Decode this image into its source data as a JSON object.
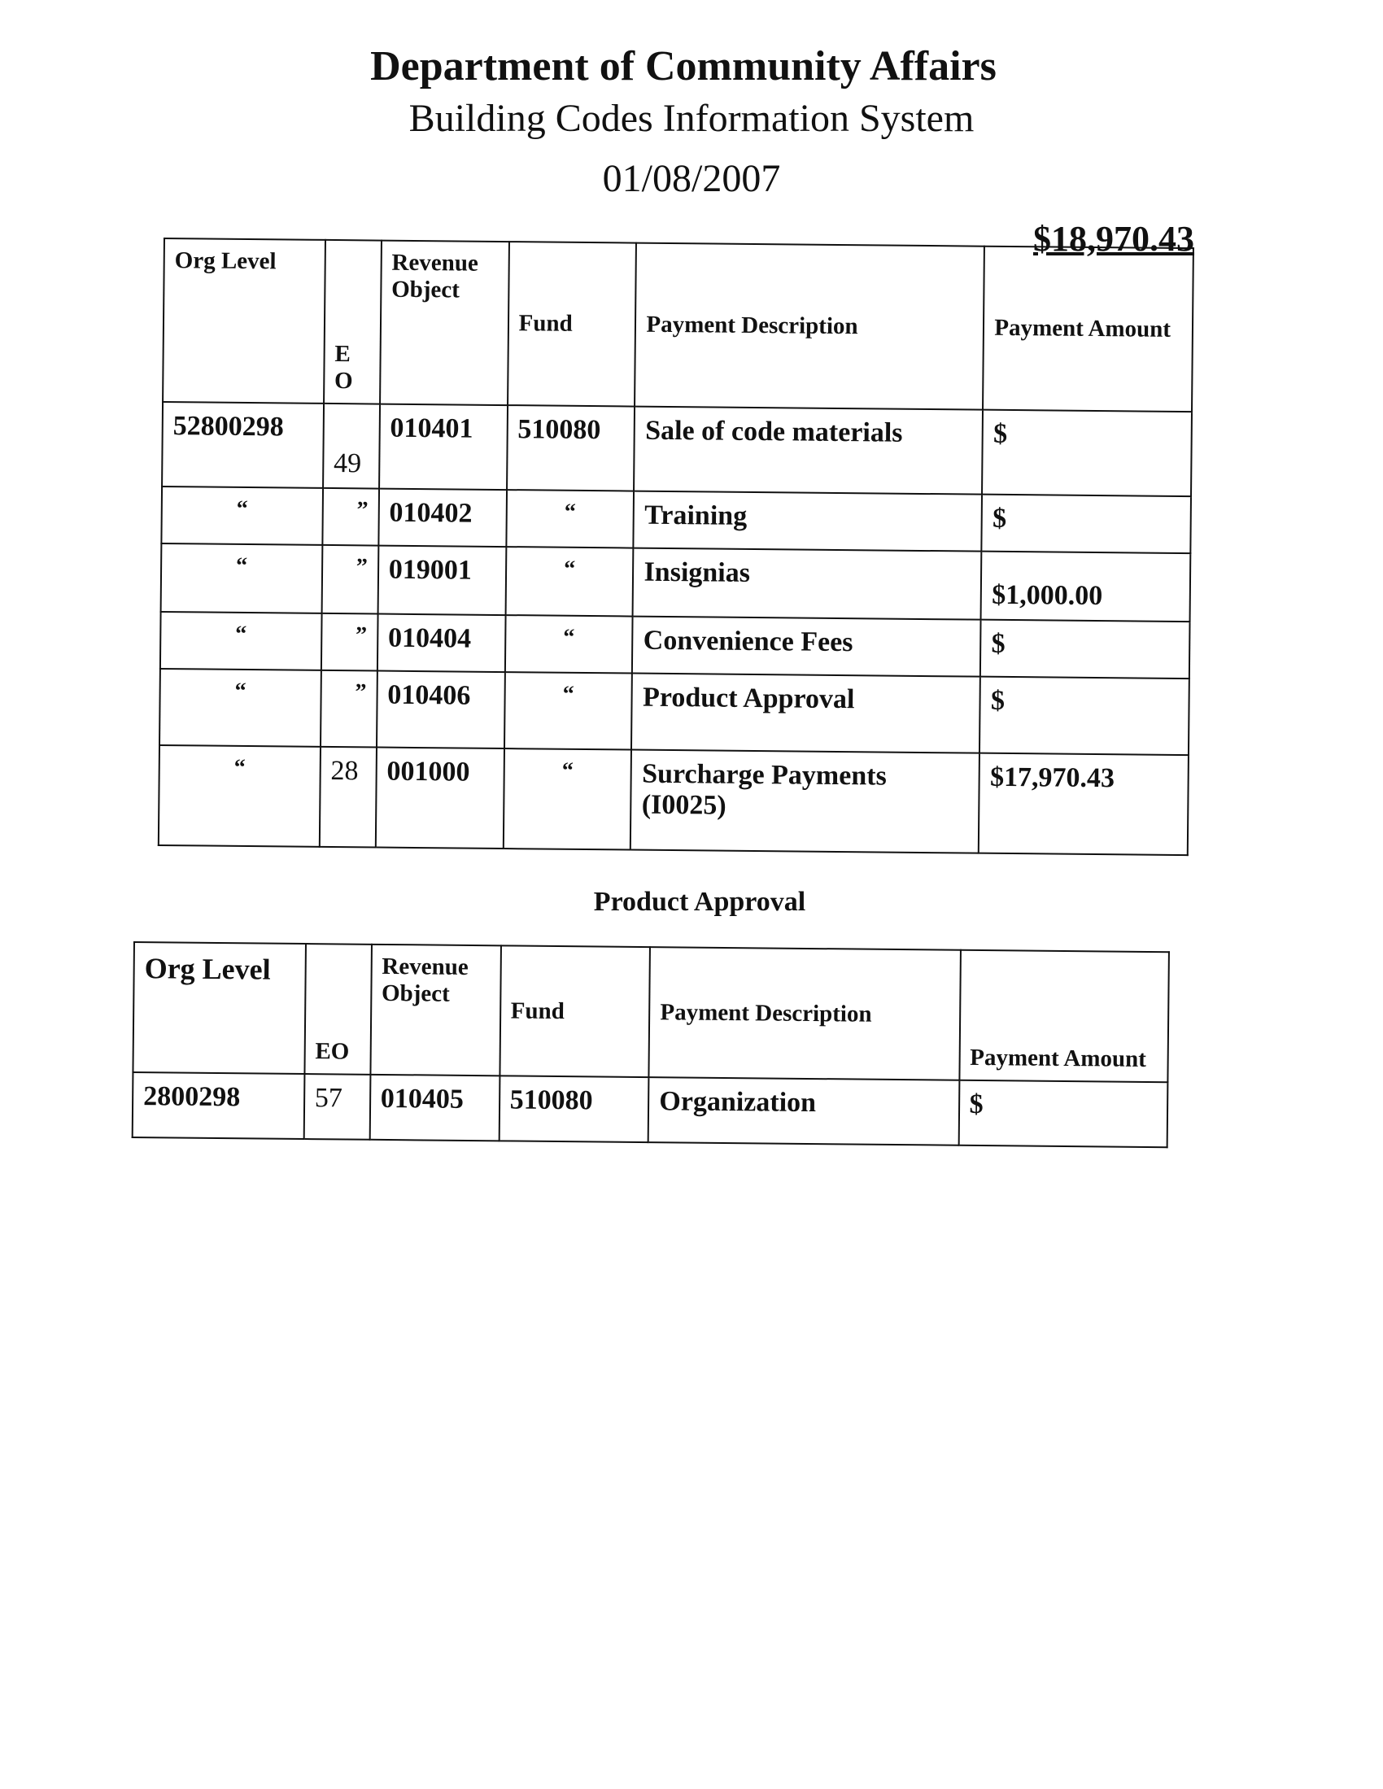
{
  "header": {
    "org": "Department of Community Affairs",
    "system": "Building Codes Information System",
    "date": "01/08/2007"
  },
  "total": "$18,970.43",
  "table1": {
    "columns": [
      "Org Level",
      "E O",
      "Revenue Object",
      "Fund",
      "Payment Description",
      "Payment Amount"
    ],
    "rows": [
      {
        "org": "52800298",
        "eo": "49",
        "rev": "010401",
        "fund": "510080",
        "desc": "Sale of code materials",
        "amount": "$"
      },
      {
        "org": "“",
        "eo": "”",
        "rev": "010402",
        "fund": "“",
        "desc": "Training",
        "amount": "$"
      },
      {
        "org": "“",
        "eo": "”",
        "rev": "019001",
        "fund": "“",
        "desc": "Insignias",
        "amount": "$1,000.00"
      },
      {
        "org": "“",
        "eo": "”",
        "rev": "010404",
        "fund": "“",
        "desc": "Convenience Fees",
        "amount": "$"
      },
      {
        "org": "“",
        "eo": "”",
        "rev": "010406",
        "fund": "“",
        "desc": "Product Approval",
        "amount": "$"
      },
      {
        "org": "“",
        "eo": "28",
        "rev": "001000",
        "fund": "“",
        "desc": "Surcharge Payments (I0025)",
        "amount": "$17,970.43"
      }
    ]
  },
  "section2_title": "Product Approval",
  "table2": {
    "columns": [
      "Org Level",
      "EO",
      "Revenue Object",
      "Fund",
      "Payment Description",
      "Payment Amount"
    ],
    "rows": [
      {
        "org": "2800298",
        "eo": "57",
        "rev": "010405",
        "fund": "510080",
        "desc": "Organization",
        "amount": "$"
      }
    ]
  }
}
